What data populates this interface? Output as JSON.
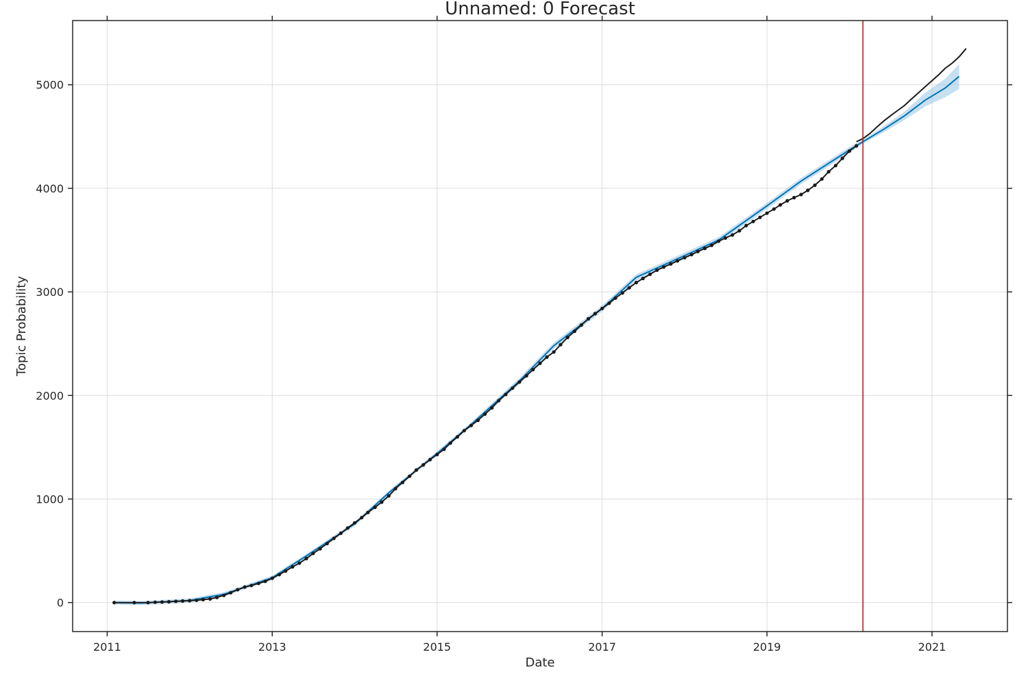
{
  "chart_data": {
    "type": "line",
    "title": "Unnamed: 0 Forecast",
    "xlabel": "Date",
    "ylabel": "Topic Probability",
    "x_ticks": [
      "2011",
      "2013",
      "2015",
      "2017",
      "2019",
      "2021"
    ],
    "y_ticks": [
      0,
      1000,
      2000,
      3000,
      4000,
      5000
    ],
    "xlim": [
      "2010-08-01",
      "2021-12-01"
    ],
    "ylim": [
      -280,
      5620
    ],
    "grid": true,
    "cutoff_date": "2020-03-01",
    "colors": {
      "observed": "#1a1a1a",
      "forecast": "#0072b2",
      "interval": "#8ec1e6",
      "cutoff": "#b22222"
    },
    "series": [
      {
        "role": "observed",
        "dates": [
          "2011-02-01",
          "2011-05-01",
          "2011-07-01",
          "2011-08-01",
          "2011-09-01",
          "2011-10-01",
          "2011-11-01",
          "2011-12-01",
          "2012-01-01",
          "2012-02-01",
          "2012-03-01",
          "2012-04-01",
          "2012-05-01",
          "2012-06-01",
          "2012-07-01",
          "2012-08-01",
          "2012-09-01",
          "2012-10-01",
          "2012-11-01",
          "2012-12-01",
          "2013-01-01",
          "2013-02-01",
          "2013-03-01",
          "2013-04-01",
          "2013-05-01",
          "2013-06-01",
          "2013-07-01",
          "2013-08-01",
          "2013-09-01",
          "2013-10-01",
          "2013-11-01",
          "2013-12-01",
          "2014-01-01",
          "2014-02-01",
          "2014-03-01",
          "2014-04-01",
          "2014-05-01",
          "2014-06-01",
          "2014-07-01",
          "2014-08-01",
          "2014-09-01",
          "2014-10-01",
          "2014-11-01",
          "2014-12-01",
          "2015-01-01",
          "2015-02-01",
          "2015-03-01",
          "2015-04-01",
          "2015-05-01",
          "2015-06-01",
          "2015-07-01",
          "2015-08-01",
          "2015-09-01",
          "2015-10-01",
          "2015-11-01",
          "2015-12-01",
          "2016-01-01",
          "2016-02-01",
          "2016-03-01",
          "2016-04-01",
          "2016-05-01",
          "2016-06-01",
          "2016-07-01",
          "2016-08-01",
          "2016-09-01",
          "2016-10-01",
          "2016-11-01",
          "2016-12-01",
          "2017-01-01",
          "2017-02-01",
          "2017-03-01",
          "2017-04-01",
          "2017-05-01",
          "2017-06-01",
          "2017-07-01",
          "2017-08-01",
          "2017-09-01",
          "2017-10-01",
          "2017-11-01",
          "2017-12-01",
          "2018-01-01",
          "2018-02-01",
          "2018-03-01",
          "2018-04-01",
          "2018-05-01",
          "2018-06-01",
          "2018-07-01",
          "2018-08-01",
          "2018-09-01",
          "2018-10-01",
          "2018-11-01",
          "2018-12-01",
          "2019-01-01",
          "2019-02-01",
          "2019-03-01",
          "2019-04-01",
          "2019-05-01",
          "2019-06-01",
          "2019-07-01",
          "2019-08-01",
          "2019-09-01",
          "2019-10-01",
          "2019-11-01",
          "2019-12-01",
          "2020-01-01",
          "2020-02-01"
        ],
        "values": [
          0,
          0,
          0,
          3,
          5,
          8,
          12,
          15,
          18,
          22,
          28,
          35,
          50,
          70,
          95,
          125,
          150,
          165,
          185,
          205,
          235,
          270,
          305,
          345,
          380,
          425,
          475,
          520,
          570,
          620,
          670,
          720,
          770,
          820,
          870,
          920,
          970,
          1030,
          1100,
          1160,
          1220,
          1280,
          1330,
          1380,
          1430,
          1480,
          1540,
          1600,
          1660,
          1710,
          1760,
          1820,
          1880,
          1950,
          2010,
          2070,
          2130,
          2190,
          2250,
          2310,
          2370,
          2420,
          2490,
          2560,
          2620,
          2680,
          2740,
          2790,
          2840,
          2890,
          2940,
          2990,
          3040,
          3090,
          3130,
          3170,
          3210,
          3240,
          3270,
          3300,
          3330,
          3360,
          3390,
          3420,
          3450,
          3490,
          3520,
          3550,
          3590,
          3640,
          3680,
          3720,
          3760,
          3800,
          3840,
          3880,
          3910,
          3940,
          3980,
          4030,
          4090,
          4160,
          4220,
          4290,
          4360,
          4410
        ]
      },
      {
        "role": "trend_extension",
        "dates": [
          "2020-02-01",
          "2020-03-01",
          "2020-04-01",
          "2020-05-01",
          "2020-06-01",
          "2020-07-01",
          "2020-08-01",
          "2020-09-01",
          "2020-10-01",
          "2020-11-01",
          "2020-12-01",
          "2021-01-01",
          "2021-02-01",
          "2021-03-01",
          "2021-04-01",
          "2021-05-01",
          "2021-06-01"
        ],
        "values": [
          4450,
          4480,
          4530,
          4590,
          4650,
          4700,
          4750,
          4800,
          4860,
          4920,
          4980,
          5040,
          5100,
          5160,
          5210,
          5270,
          5350
        ]
      },
      {
        "role": "forecast",
        "dates": [
          "2011-02-01",
          "2011-06-01",
          "2012-01-01",
          "2012-06-01",
          "2013-01-01",
          "2013-06-01",
          "2014-01-01",
          "2014-06-01",
          "2015-01-01",
          "2015-06-01",
          "2016-01-01",
          "2016-06-01",
          "2017-01-01",
          "2017-06-01",
          "2018-01-01",
          "2018-06-01",
          "2019-01-01",
          "2019-06-01",
          "2020-01-01",
          "2020-03-01",
          "2020-06-01",
          "2020-09-01",
          "2020-12-01",
          "2021-03-01",
          "2021-05-01"
        ],
        "values": [
          0,
          -5,
          20,
          80,
          240,
          450,
          760,
          1060,
          1440,
          1720,
          2140,
          2480,
          2840,
          3140,
          3350,
          3500,
          3830,
          4070,
          4370,
          4450,
          4570,
          4700,
          4850,
          4970,
          5080
        ],
        "lower": [
          -20,
          -25,
          0,
          60,
          220,
          430,
          740,
          1040,
          1420,
          1700,
          2110,
          2450,
          2810,
          3110,
          3320,
          3470,
          3800,
          4040,
          4340,
          4430,
          4540,
          4660,
          4790,
          4880,
          4960
        ],
        "upper": [
          20,
          15,
          40,
          100,
          260,
          470,
          780,
          1080,
          1460,
          1740,
          2170,
          2510,
          2870,
          3170,
          3380,
          3530,
          3860,
          4100,
          4400,
          4470,
          4600,
          4740,
          4920,
          5060,
          5200
        ]
      }
    ]
  }
}
